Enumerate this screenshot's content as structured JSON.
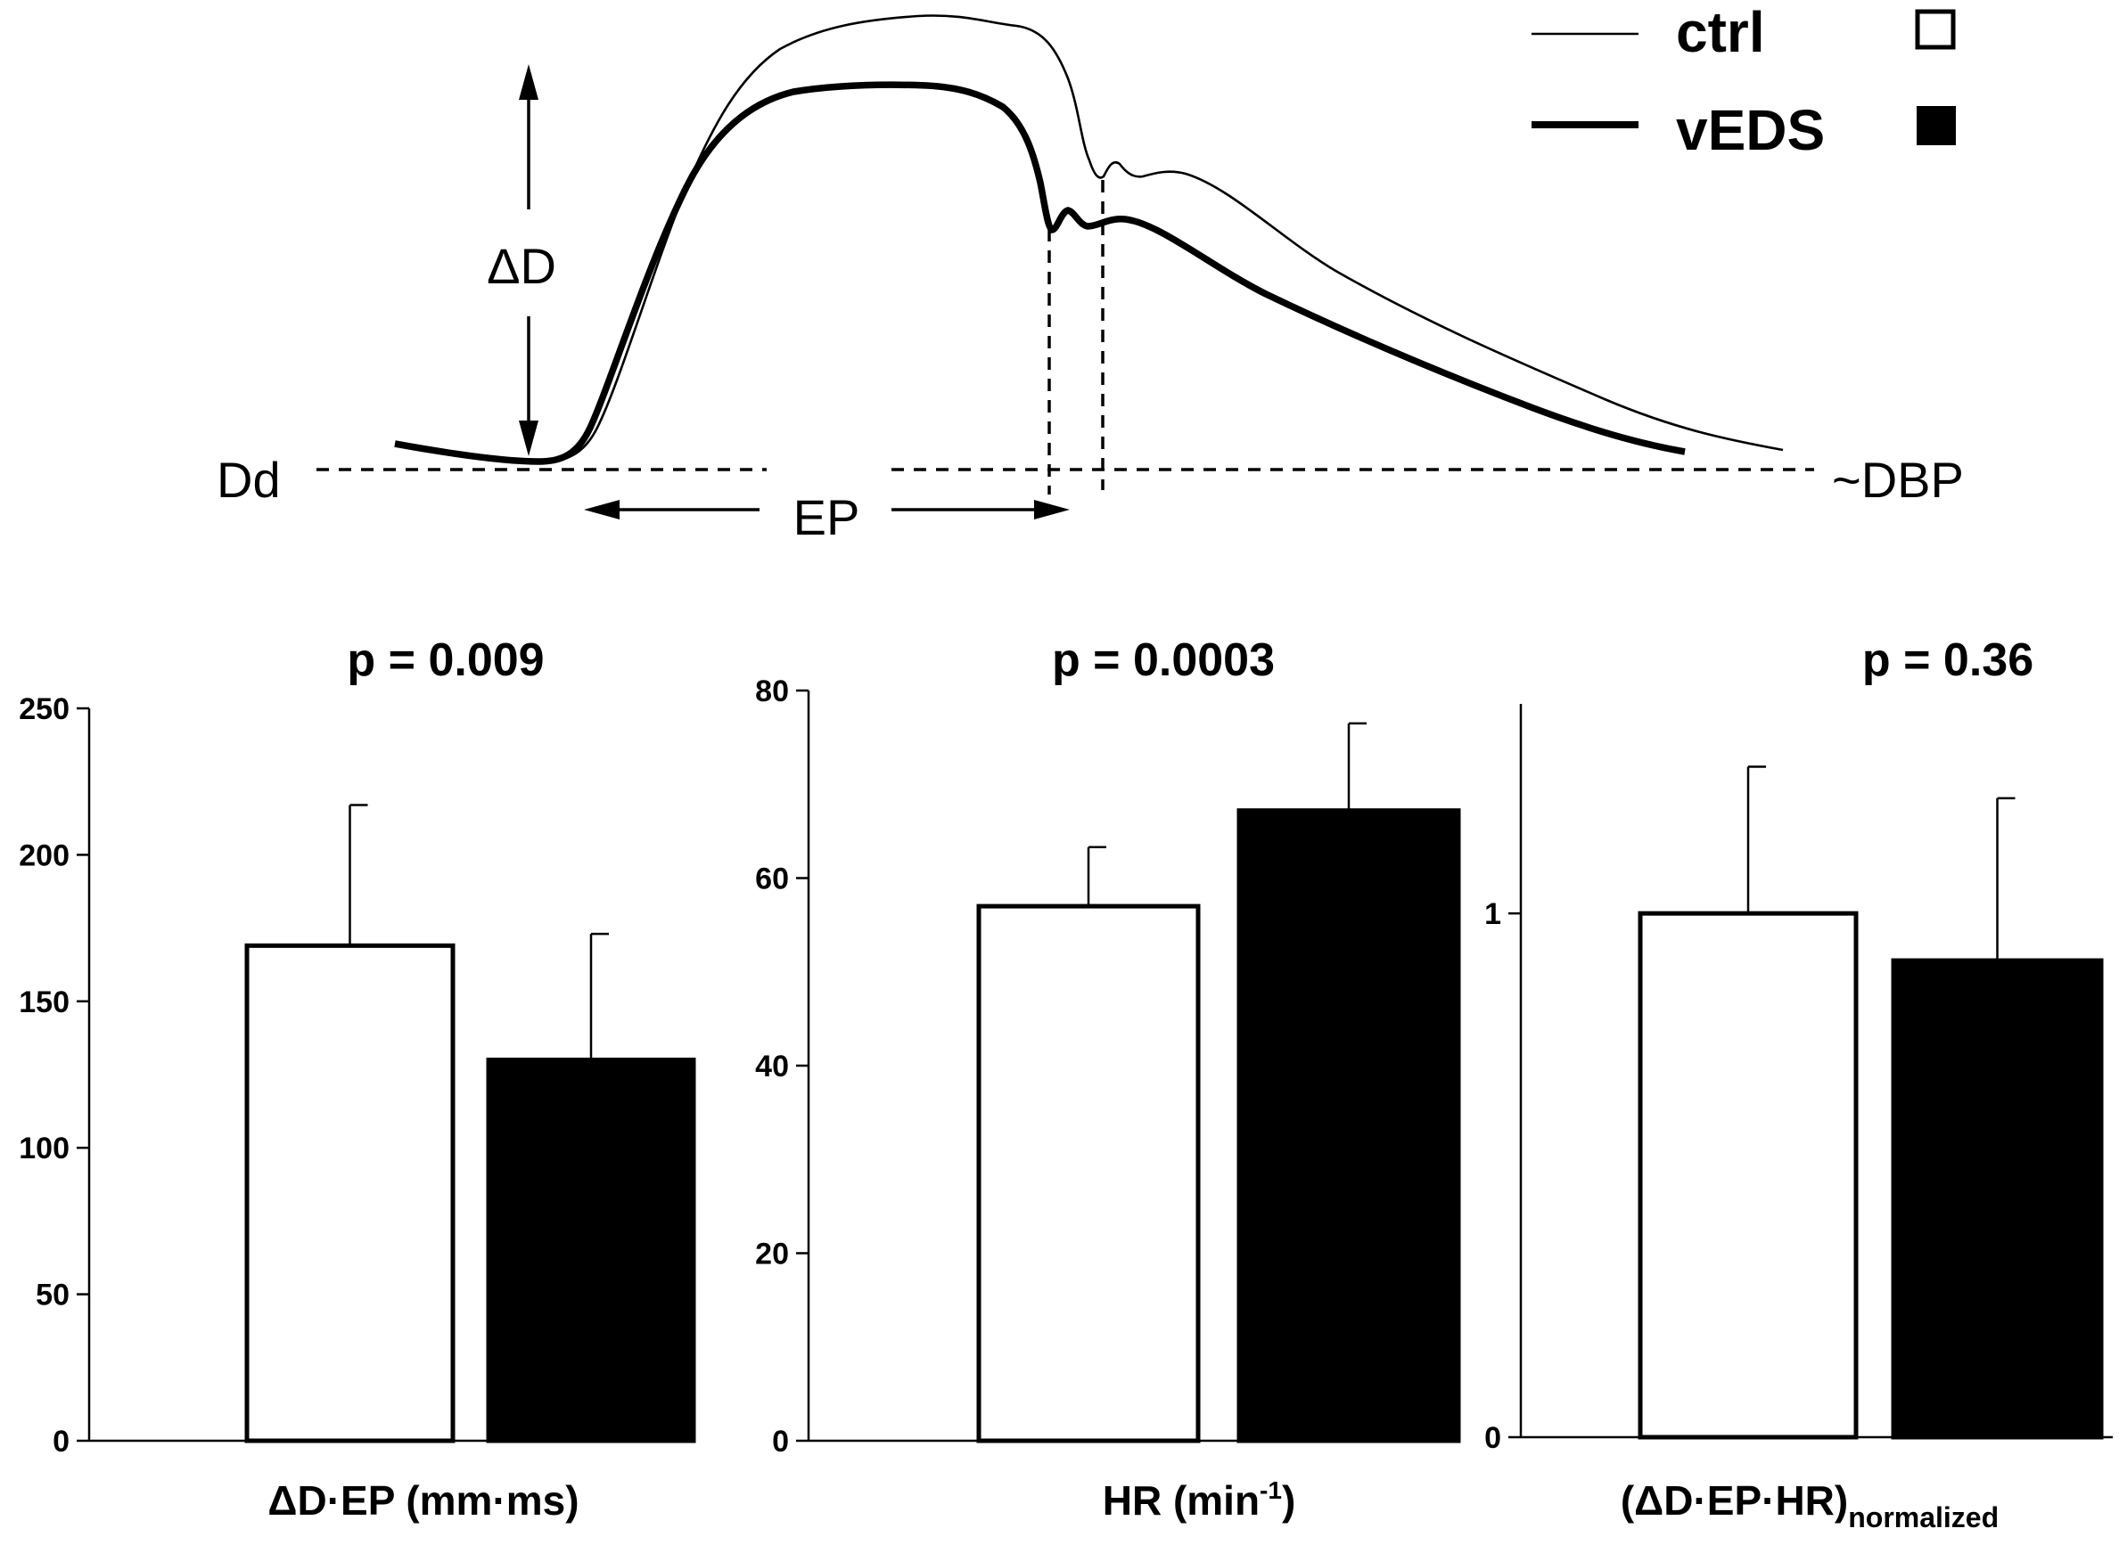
{
  "schematic": {
    "legend": [
      {
        "name": "ctrl",
        "line": "thin",
        "swatch": "open"
      },
      {
        "name": "vEDS",
        "line": "thick",
        "swatch": "filled"
      }
    ],
    "labels": {
      "delta_d": "ΔD",
      "dd": "Dd",
      "ep": "EP",
      "dbp": "~DBP"
    }
  },
  "chart_data": [
    {
      "type": "bar",
      "title": "p = 0.009",
      "xlabel": "ΔD·EP (mm·ms)",
      "xlabel_sup": "",
      "xlabel_sub": "",
      "ylim": [
        0,
        250
      ],
      "yticks": [
        0,
        50,
        100,
        150,
        200,
        250
      ],
      "series": [
        {
          "name": "ctrl",
          "value": 169,
          "error": 48,
          "fill": "#ffffff"
        },
        {
          "name": "vEDS",
          "value": 130,
          "error": 43,
          "fill": "#000000"
        }
      ]
    },
    {
      "type": "bar",
      "title": "p = 0.0003",
      "xlabel": "HR (min",
      "xlabel_sup": "-1",
      "xlabel_tail": ")",
      "xlabel_sub": "",
      "ylim": [
        0,
        80
      ],
      "yticks": [
        0,
        20,
        40,
        60,
        80
      ],
      "series": [
        {
          "name": "ctrl",
          "value": 57,
          "error": 6.3,
          "fill": "#ffffff"
        },
        {
          "name": "vEDS",
          "value": 67.2,
          "error": 9.3,
          "fill": "#000000"
        }
      ]
    },
    {
      "type": "bar",
      "title": "p = 0.36",
      "xlabel": "(ΔD·EP·HR)",
      "xlabel_sup": "",
      "xlabel_sub": "normalized",
      "ylim": [
        0,
        1.4
      ],
      "yticks": [
        0,
        1
      ],
      "series": [
        {
          "name": "ctrl",
          "value": 1.0,
          "error": 0.28,
          "fill": "#ffffff"
        },
        {
          "name": "vEDS",
          "value": 0.91,
          "error": 0.31,
          "fill": "#000000"
        }
      ]
    }
  ]
}
